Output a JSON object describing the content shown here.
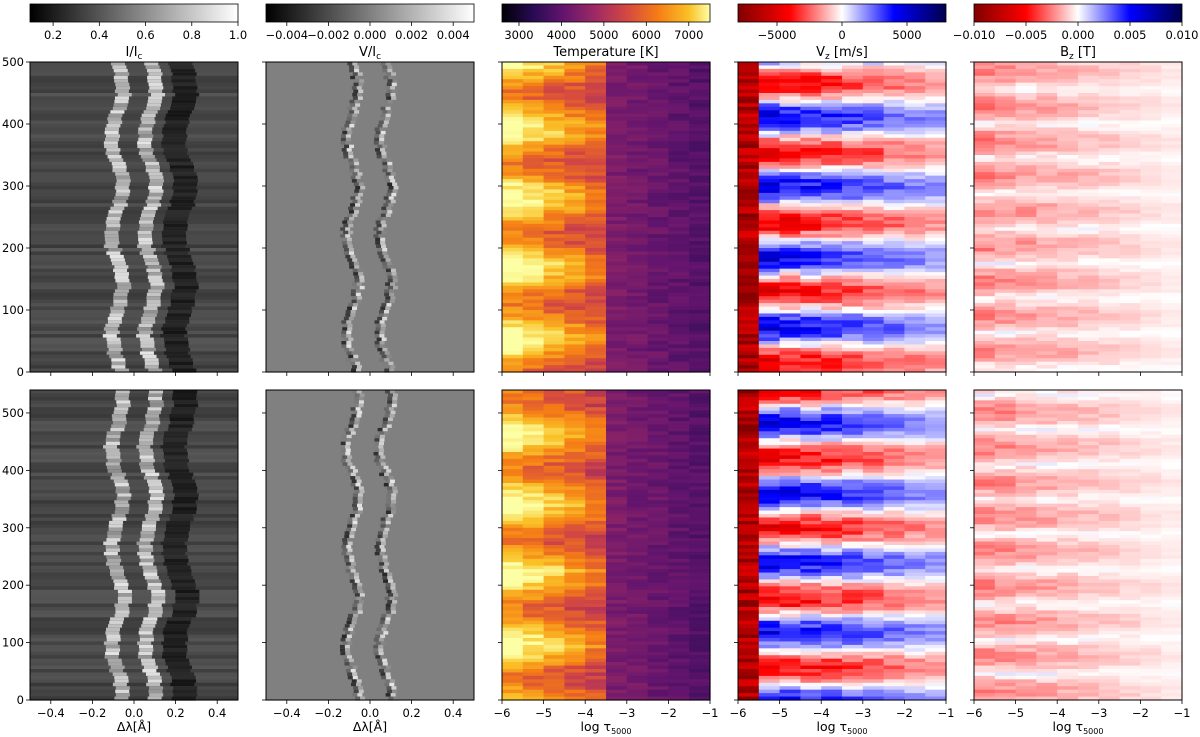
{
  "figure": {
    "description_free": true
  },
  "chart_data": [
    {
      "type": "heatmap",
      "panel": "intensity",
      "colormap": "gray",
      "colorbar": {
        "title": "I/I",
        "title_sub": "c",
        "range": [
          0.1,
          1.0
        ],
        "ticks": [
          0.2,
          0.4,
          0.6,
          0.8,
          1.0
        ],
        "tick_labels": [
          "0.2",
          "0.4",
          "0.6",
          "0.8",
          "1.0"
        ]
      },
      "xlabel": "Δλ[Å]",
      "xlim": [
        -0.5,
        0.5
      ],
      "xticks": [
        -0.4,
        -0.2,
        0.0,
        0.2,
        0.4
      ],
      "xtick_labels": [
        "−0.4",
        "−0.2",
        "0.0",
        "0.2",
        "0.4"
      ],
      "rows": [
        {
          "ylim": [
            0,
            500
          ],
          "yticks": [
            0,
            100,
            200,
            300,
            400,
            500
          ],
          "ytick_labels": [
            "0",
            "100",
            "200",
            "300",
            "400",
            "500"
          ]
        },
        {
          "ylim": [
            0,
            540
          ],
          "yticks": [
            0,
            100,
            200,
            300,
            400,
            500
          ],
          "ytick_labels": [
            "0",
            "100",
            "200",
            "300",
            "400",
            "500"
          ]
        }
      ]
    },
    {
      "type": "heatmap",
      "panel": "stokes_v",
      "colormap": "gray",
      "colorbar": {
        "title": "V/I",
        "title_sub": "c",
        "range": [
          -0.005,
          0.005
        ],
        "ticks": [
          -0.004,
          -0.002,
          0.0,
          0.002,
          0.004
        ],
        "tick_labels": [
          "−0.004",
          "−0.002",
          "0.000",
          "0.002",
          "0.004"
        ]
      },
      "xlabel": "Δλ[Å]",
      "xlim": [
        -0.5,
        0.5
      ],
      "xticks": [
        -0.4,
        -0.2,
        0.0,
        0.2,
        0.4
      ],
      "xtick_labels": [
        "−0.4",
        "−0.2",
        "0.0",
        "0.2",
        "0.4"
      ],
      "rows": [
        {
          "ylim": [
            0,
            500
          ],
          "yticks": [
            0,
            100,
            200,
            300,
            400,
            500
          ]
        },
        {
          "ylim": [
            0,
            540
          ],
          "yticks": [
            0,
            100,
            200,
            300,
            400,
            500
          ]
        }
      ]
    },
    {
      "type": "heatmap",
      "panel": "temperature",
      "colormap": "inferno",
      "colorbar": {
        "title": "Temperature [K]",
        "range": [
          2600,
          7500
        ],
        "ticks": [
          3000,
          4000,
          5000,
          6000,
          7000
        ],
        "tick_labels": [
          "3000",
          "4000",
          "5000",
          "6000",
          "7000"
        ]
      },
      "xlabel": "log τ",
      "xlabel_sub": "5000",
      "xlim": [
        -6,
        -1
      ],
      "xticks": [
        -6,
        -5,
        -4,
        -3,
        -2,
        -1
      ],
      "xtick_labels": [
        "−6",
        "−5",
        "−4",
        "−3",
        "−2",
        "−1"
      ],
      "rows": [
        {
          "ylim": [
            0,
            500
          ],
          "yticks": [
            0,
            100,
            200,
            300,
            400,
            500
          ]
        },
        {
          "ylim": [
            0,
            540
          ],
          "yticks": [
            0,
            100,
            200,
            300,
            400,
            500
          ]
        }
      ]
    },
    {
      "type": "heatmap",
      "panel": "vz",
      "colormap": "seismic_r",
      "colorbar": {
        "title": "V",
        "title_sub": "z",
        "title_rest": " [m/s]",
        "range": [
          -8000,
          8000
        ],
        "ticks": [
          -5000,
          0,
          5000
        ],
        "tick_labels": [
          "−5000",
          "0",
          "5000"
        ]
      },
      "xlabel": "log τ",
      "xlabel_sub": "5000",
      "xlim": [
        -6,
        -1
      ],
      "xticks": [
        -6,
        -5,
        -4,
        -3,
        -2,
        -1
      ],
      "xtick_labels": [
        "−6",
        "−5",
        "−4",
        "−3",
        "−2",
        "−1"
      ],
      "rows": [
        {
          "ylim": [
            0,
            500
          ],
          "yticks": [
            0,
            100,
            200,
            300,
            400,
            500
          ]
        },
        {
          "ylim": [
            0,
            540
          ],
          "yticks": [
            0,
            100,
            200,
            300,
            400,
            500
          ]
        }
      ]
    },
    {
      "type": "heatmap",
      "panel": "bz",
      "colormap": "seismic_r",
      "colorbar": {
        "title": "B",
        "title_sub": "z",
        "title_rest": " [T]",
        "range": [
          -0.01,
          0.01
        ],
        "ticks": [
          -0.01,
          -0.005,
          0.0,
          0.005,
          0.01
        ],
        "tick_labels": [
          "−0.010",
          "−0.005",
          "0.000",
          "0.005",
          "0.010"
        ]
      },
      "xlabel": "log τ",
      "xlabel_sub": "5000",
      "xlim": [
        -6,
        -1
      ],
      "xticks": [
        -6,
        -5,
        -4,
        -3,
        -2,
        -1
      ],
      "xtick_labels": [
        "−6",
        "−5",
        "−4",
        "−3",
        "−2",
        "−1"
      ],
      "rows": [
        {
          "ylim": [
            0,
            500
          ],
          "yticks": [
            0,
            100,
            200,
            300,
            400,
            500
          ]
        },
        {
          "ylim": [
            0,
            540
          ],
          "yticks": [
            0,
            100,
            200,
            300,
            400,
            500
          ]
        }
      ]
    }
  ]
}
